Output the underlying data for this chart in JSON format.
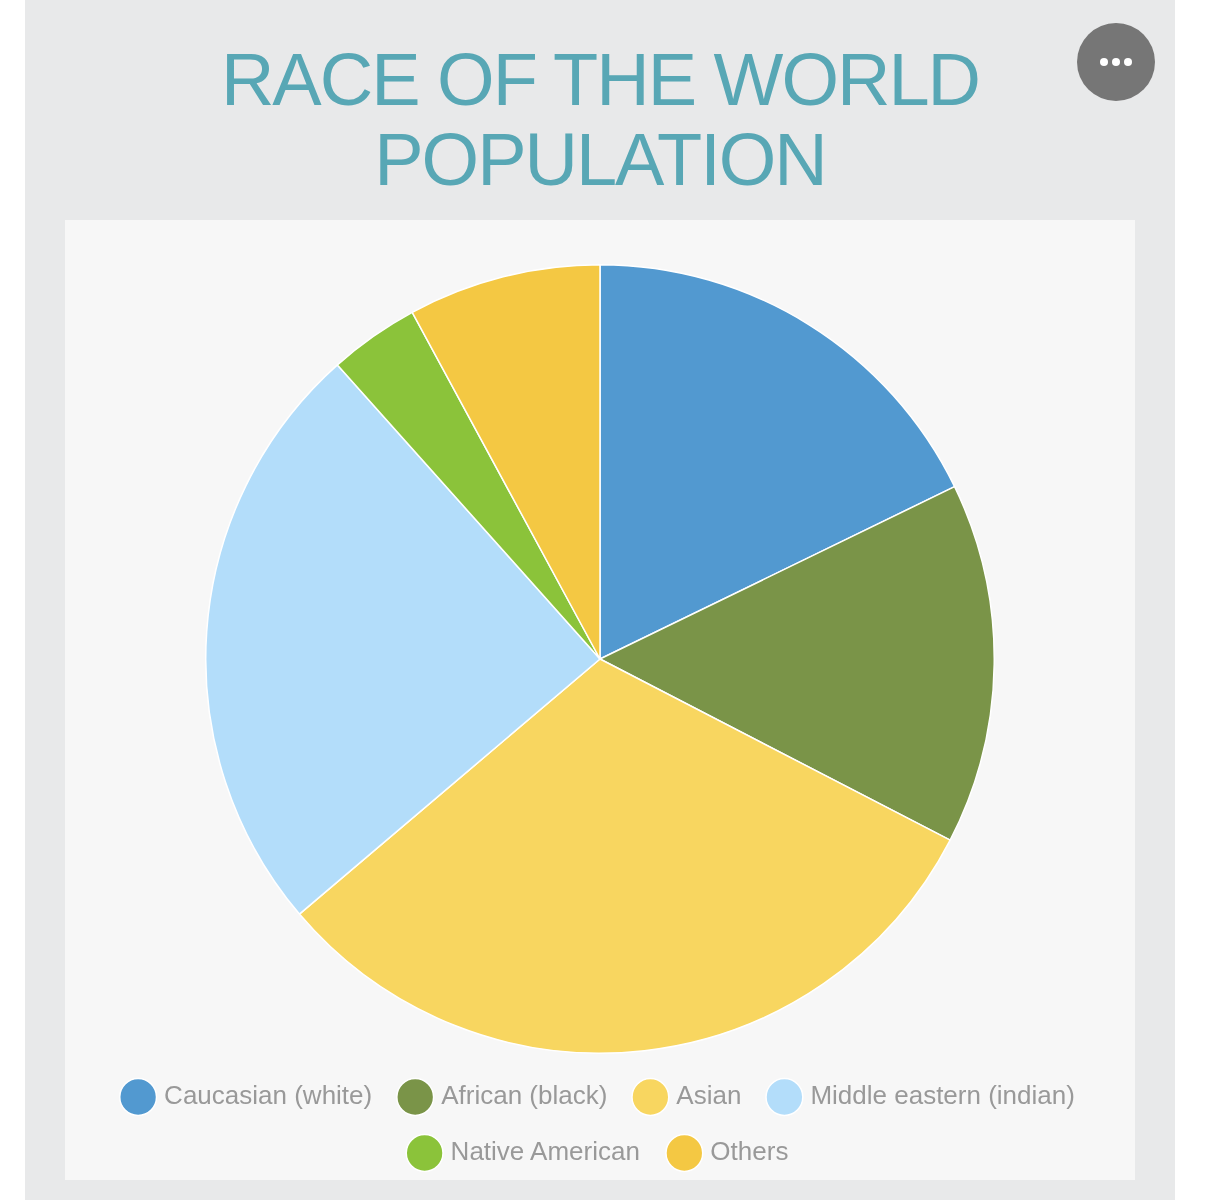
{
  "chart_data": {
    "type": "pie",
    "title": "RACE OF THE WORLD POPULATION",
    "categories": [
      "Caucasian (white)",
      "African (black)",
      "Asian",
      "Middle eastern (indian)",
      "Native American",
      "Others"
    ],
    "values": [
      17.8,
      14.8,
      31.2,
      24.6,
      3.7,
      7.9
    ],
    "colors": [
      "#5299d0",
      "#7a9448",
      "#f8d660",
      "#b3ddfa",
      "#8bc33a",
      "#f4c843"
    ],
    "legend": "bottom"
  }
}
